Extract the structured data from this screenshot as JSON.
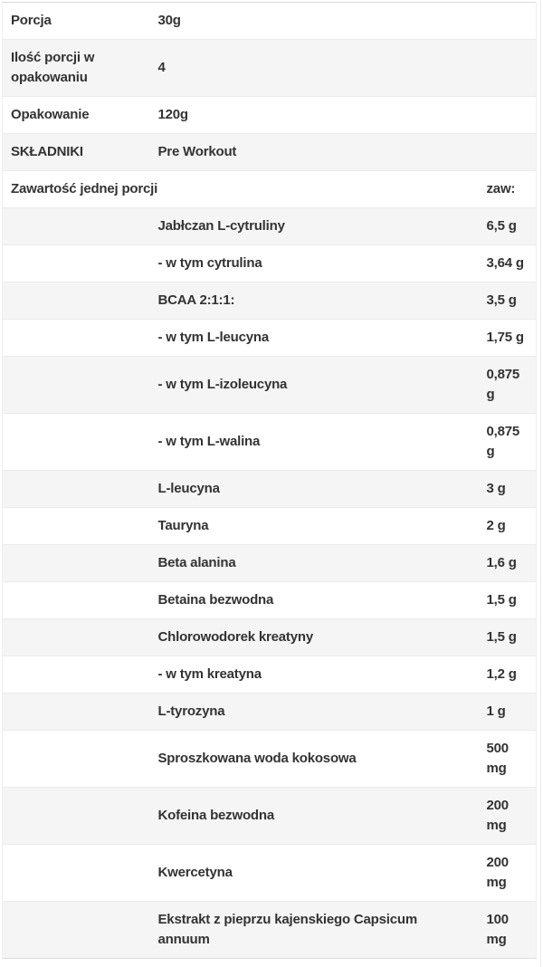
{
  "meta_rows": [
    {
      "label": "Porcja",
      "value": "30g"
    },
    {
      "label": "Ilość porcji w opakowaniu",
      "value": "4"
    },
    {
      "label": "Opakowanie",
      "value": "120g"
    },
    {
      "label": "SKŁADNIKI",
      "value": "Pre Workout"
    }
  ],
  "header_row": {
    "label": "Zawartość jednej porcji",
    "amount_label": "zaw:"
  },
  "ingredients": [
    {
      "name": "Jabłczan L-cytruliny",
      "amount": "6,5 g"
    },
    {
      "name": "- w tym cytrulina",
      "amount": "3,64 g"
    },
    {
      "name": "BCAA 2:1:1:",
      "amount": "3,5 g"
    },
    {
      "name": "- w tym L-leucyna",
      "amount": "1,75 g"
    },
    {
      "name": "- w tym L-izoleucyna",
      "amount": "0,875 g"
    },
    {
      "name": "- w tym L-walina",
      "amount": "0,875 g"
    },
    {
      "name": "L-leucyna",
      "amount": "3 g"
    },
    {
      "name": "Tauryna",
      "amount": "2 g"
    },
    {
      "name": "Beta alanina",
      "amount": "1,6 g"
    },
    {
      "name": "Betaina bezwodna",
      "amount": "1,5 g"
    },
    {
      "name": "Chlorowodorek kreatyny",
      "amount": "1,5 g"
    },
    {
      "name": "- w tym kreatyna",
      "amount": "1,2 g"
    },
    {
      "name": "L-tyrozyna",
      "amount": "1 g"
    },
    {
      "name": "Sproszkowana woda kokosowa",
      "amount": "500 mg"
    },
    {
      "name": "Kofeina bezwodna",
      "amount": "200 mg"
    },
    {
      "name": "Kwercetyna",
      "amount": "200 mg"
    },
    {
      "name": "Ekstrakt z pieprzu kajenskiego Capsicum annuum",
      "amount": "100 mg"
    }
  ],
  "colors": {
    "text_color": "#333333",
    "row_alt_bg": "#f5f5f5",
    "row_border": "#ebebeb",
    "table_top_border": "#d8d8d8",
    "table_side_border": "#f0f0f0"
  }
}
